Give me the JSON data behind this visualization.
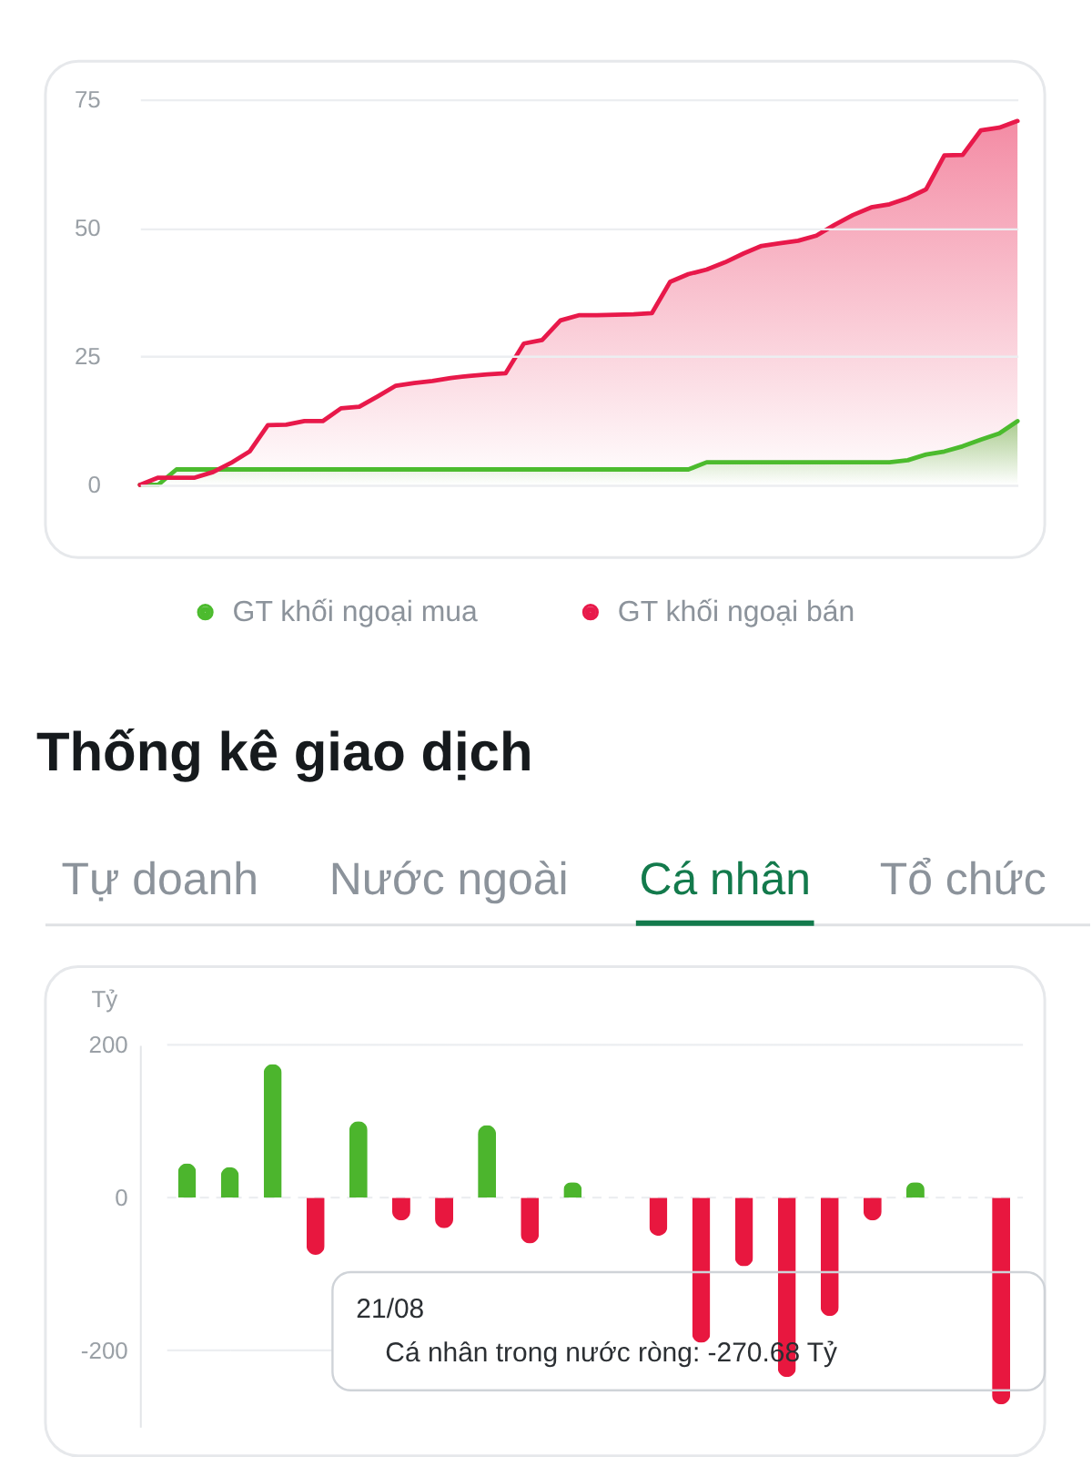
{
  "chart_data": [
    {
      "type": "area",
      "categories": [
        null,
        null,
        null,
        null,
        null,
        null,
        null,
        null,
        null,
        null,
        null,
        null,
        null,
        null,
        null,
        null,
        null,
        null,
        null,
        null,
        null,
        null,
        null,
        null,
        null,
        null,
        null,
        null,
        null,
        null,
        null,
        null,
        null,
        null,
        null,
        null,
        null,
        null,
        null,
        null,
        null,
        null,
        null,
        null,
        null,
        null,
        null,
        null,
        null
      ],
      "series": [
        {
          "name": "GT khối ngoại mua",
          "color": "#4cbb2e",
          "values": [
            0,
            0,
            3,
            3,
            3,
            3,
            3,
            3,
            3,
            3,
            3,
            3,
            3,
            3,
            3,
            3,
            3,
            3,
            3,
            3,
            3,
            3,
            3,
            3,
            3,
            3,
            3,
            3,
            3,
            3,
            3,
            4.4,
            4.4,
            4.4,
            4.4,
            4.4,
            4.4,
            4.4,
            4.4,
            4.4,
            4.4,
            4.4,
            4.8,
            5.9,
            6.5,
            7.5,
            8.8,
            10,
            12.4
          ]
        },
        {
          "name": "GT khối ngoại bán",
          "color": "#e8194a",
          "values": [
            0,
            1.4,
            1.4,
            1.4,
            2.5,
            4.3,
            6.5,
            11.6,
            11.7,
            12.4,
            12.4,
            14.9,
            15.2,
            17.2,
            19.3,
            19.8,
            20.2,
            20.8,
            21.2,
            21.5,
            21.7,
            27.5,
            28.2,
            32,
            33,
            33,
            33.1,
            33.2,
            33.4,
            39.5,
            41,
            41.9,
            43.3,
            45,
            46.5,
            47,
            47.5,
            48.5,
            50.6,
            52.5,
            54,
            54.6,
            55.8,
            57.5,
            64.1,
            64.2,
            69,
            69.5,
            70.8
          ]
        }
      ],
      "ylim": [
        0,
        75
      ],
      "yticks": [
        0,
        25,
        50,
        75
      ],
      "grid": "y",
      "legend": "bottom"
    },
    {
      "type": "other",
      "title": "Thống kê giao dịch",
      "categories": [
        "Tự doanh",
        "Nước ngoài",
        "Cá nhân",
        "Tổ chức"
      ],
      "colors": [
        "#8c939b",
        "#8c939b",
        "#137a4c",
        "#8c939b"
      ]
    },
    {
      "type": "bar",
      "ylabel": "Tỷ",
      "categories": [
        null,
        null,
        null,
        null,
        null,
        null,
        null,
        null,
        null,
        null,
        null,
        null,
        null,
        null,
        null,
        null,
        null,
        null,
        null,
        null
      ],
      "values": [
        45,
        40,
        175,
        -75,
        100,
        -30,
        -40,
        95,
        -60,
        20,
        null,
        -50,
        -190,
        -90,
        -235,
        -155,
        -30,
        20,
        null,
        -270.68
      ],
      "colors": [
        "#4cb52d",
        "#4cb52d",
        "#4cb52d",
        "#e8173f",
        "#4cb52d",
        "#e8173f",
        "#e8173f",
        "#4cb52d",
        "#e8173f",
        "#4cb52d",
        null,
        "#e8173f",
        "#e8173f",
        "#e8173f",
        "#e8173f",
        "#e8173f",
        "#e8173f",
        "#4cb52d",
        null,
        "#e8173f"
      ],
      "ylim": [
        -300,
        200
      ],
      "yticks": [
        -200,
        0,
        200
      ],
      "grid": "y",
      "annotations": [
        "21/08",
        "Cá nhân trong nước ròng: -270.68 Tỷ"
      ]
    }
  ]
}
